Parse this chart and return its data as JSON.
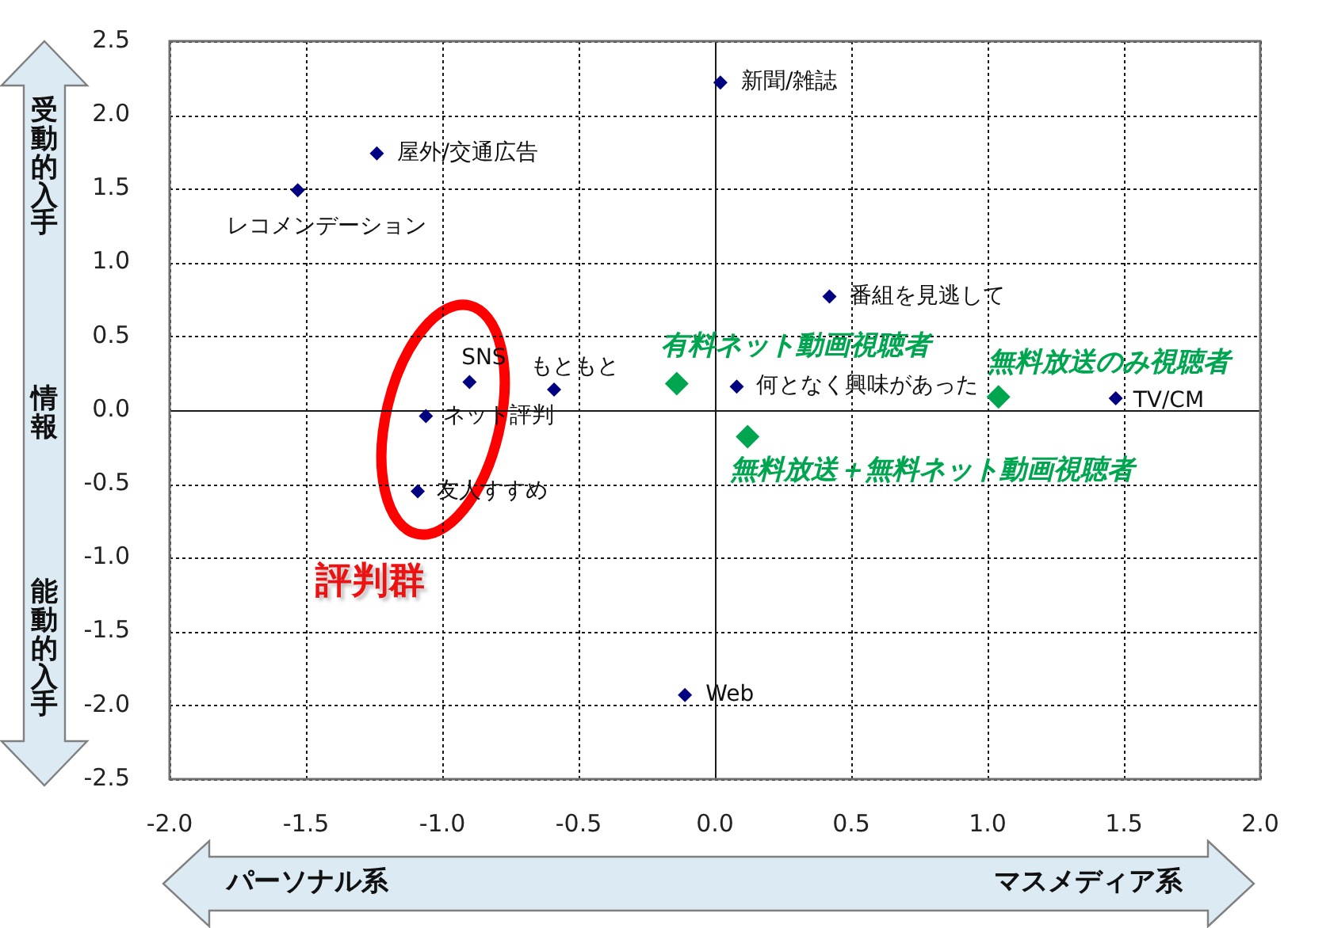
{
  "chart_data": {
    "type": "scatter",
    "marker": "diamond",
    "grid": true,
    "xlim": [
      -2,
      2
    ],
    "ylim": [
      -2.5,
      2.5
    ],
    "xticks": [
      {
        "value": -2,
        "label": "-2.0"
      },
      {
        "value": -1.5,
        "label": "-1.5"
      },
      {
        "value": -1,
        "label": "-1.0"
      },
      {
        "value": -0.5,
        "label": "-0.5"
      },
      {
        "value": 0,
        "label": "0.0"
      },
      {
        "value": 0.5,
        "label": "0.5"
      },
      {
        "value": 1,
        "label": "1.0"
      },
      {
        "value": 1.5,
        "label": "1.5"
      },
      {
        "value": 2,
        "label": "2.0"
      }
    ],
    "yticks": [
      {
        "value": -2.5,
        "label": "-2.5"
      },
      {
        "value": -2,
        "label": "-2.0"
      },
      {
        "value": -1.5,
        "label": "-1.5"
      },
      {
        "value": -1,
        "label": "-1.0"
      },
      {
        "value": -0.5,
        "label": "-0.5"
      },
      {
        "value": 0,
        "label": "0.0"
      },
      {
        "value": 0.5,
        "label": "0.5"
      },
      {
        "value": 1,
        "label": "1.0"
      },
      {
        "value": 1.5,
        "label": "1.5"
      },
      {
        "value": 2,
        "label": "2.0"
      },
      {
        "value": 2.5,
        "label": "2.5"
      }
    ],
    "series": [
      {
        "name": "新聞/雑誌",
        "color": "#000080",
        "x": [
          0.02
        ],
        "values": [
          2.22
        ]
      },
      {
        "name": "屋外/交通広告",
        "color": "#000080",
        "x": [
          -1.24
        ],
        "values": [
          1.74
        ]
      },
      {
        "name": "レコメンデーション",
        "color": "#000080",
        "x": [
          -1.53
        ],
        "values": [
          1.49
        ]
      },
      {
        "name": "番組を見逃して",
        "color": "#000080",
        "x": [
          0.42
        ],
        "values": [
          0.77
        ]
      },
      {
        "name": "SNS",
        "color": "#000080",
        "x": [
          -0.9
        ],
        "values": [
          0.19
        ]
      },
      {
        "name": "もともと",
        "color": "#000080",
        "x": [
          -0.59
        ],
        "values": [
          0.14
        ]
      },
      {
        "name": "ネット評判",
        "color": "#000080",
        "x": [
          -1.06
        ],
        "values": [
          -0.04
        ]
      },
      {
        "name": "友人すすめ",
        "color": "#000080",
        "x": [
          -1.09
        ],
        "values": [
          -0.55
        ]
      },
      {
        "name": "何となく興味があった",
        "color": "#000080",
        "x": [
          0.08
        ],
        "values": [
          0.16
        ]
      },
      {
        "name": "TV/CM",
        "color": "#000080",
        "x": [
          1.47
        ],
        "values": [
          0.08
        ]
      },
      {
        "name": "Web",
        "color": "#000080",
        "x": [
          -0.11
        ],
        "values": [
          -1.93
        ]
      },
      {
        "name": "有料ネット動画視聴者",
        "color": "#00a550",
        "x": [
          -0.14
        ],
        "values": [
          0.18
        ]
      },
      {
        "name": "無料放送のみ視聴者",
        "color": "#00a550",
        "x": [
          1.04
        ],
        "values": [
          0.09
        ]
      },
      {
        "name": "無料放送＋無料ネット動画視聴者",
        "color": "#00a550",
        "x": [
          0.12
        ],
        "values": [
          -0.18
        ]
      }
    ],
    "annotations": [
      "受動的入手",
      "情報",
      "能動的入手",
      "パーソナル系",
      "マスメディア系",
      "評判群"
    ]
  }
}
